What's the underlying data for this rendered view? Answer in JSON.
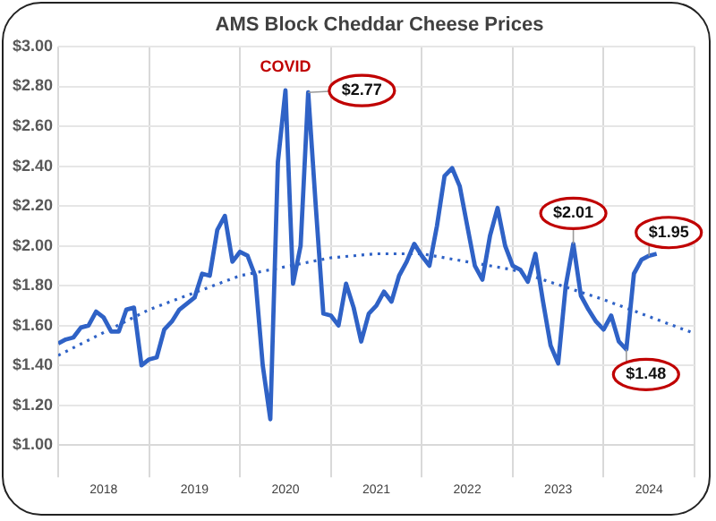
{
  "chart_data": {
    "type": "line",
    "title": "AMS Block Cheddar Cheese Prices",
    "xlim": [
      "2018-01",
      "2025-01"
    ],
    "xticks": [
      {
        "value": "2018-01",
        "label": null
      },
      {
        "value": "2018-07",
        "label": "2018"
      },
      {
        "value": "2019-01",
        "label": null
      },
      {
        "value": "2019-07",
        "label": "2019"
      },
      {
        "value": "2020-01",
        "label": null
      },
      {
        "value": "2020-07",
        "label": "2020"
      },
      {
        "value": "2021-01",
        "label": null
      },
      {
        "value": "2021-07",
        "label": "2021"
      },
      {
        "value": "2022-01",
        "label": null
      },
      {
        "value": "2022-07",
        "label": "2022"
      },
      {
        "value": "2023-01",
        "label": null
      },
      {
        "value": "2023-07",
        "label": "2023"
      },
      {
        "value": "2024-01",
        "label": null
      },
      {
        "value": "2024-07",
        "label": "2024"
      },
      {
        "value": "2025-01",
        "label": null
      }
    ],
    "ylim": [
      1,
      3
    ],
    "yticks": [
      {
        "value": 1,
        "label": "$1.00"
      },
      {
        "value": 1.2,
        "label": "$1.20"
      },
      {
        "value": 1.4,
        "label": "$1.40"
      },
      {
        "value": 1.6,
        "label": "$1.60"
      },
      {
        "value": 1.8,
        "label": "$1.80"
      },
      {
        "value": 2,
        "label": "$2.00"
      },
      {
        "value": 2.2,
        "label": "$2.20"
      },
      {
        "value": 2.4,
        "label": "$2.40"
      },
      {
        "value": 2.6,
        "label": "$2.60"
      },
      {
        "value": 2.8,
        "label": "$2.80"
      },
      {
        "value": 3,
        "label": "$3.00"
      }
    ],
    "grid": true,
    "legend": false,
    "marker": "none",
    "series": [
      {
        "type": "line",
        "color": "#2f62c6",
        "line_style": "solid",
        "x": [
          "2018-01",
          "2018-02",
          "2018-03",
          "2018-04",
          "2018-05",
          "2018-06",
          "2018-07",
          "2018-08",
          "2018-09",
          "2018-10",
          "2018-11",
          "2018-12",
          "2019-01",
          "2019-02",
          "2019-03",
          "2019-04",
          "2019-05",
          "2019-06",
          "2019-07",
          "2019-08",
          "2019-09",
          "2019-10",
          "2019-11",
          "2019-12",
          "2020-01",
          "2020-02",
          "2020-03",
          "2020-04",
          "2020-05",
          "2020-06",
          "2020-07",
          "2020-08",
          "2020-09",
          "2020-10",
          "2020-11",
          "2020-12",
          "2021-01",
          "2021-02",
          "2021-03",
          "2021-04",
          "2021-05",
          "2021-06",
          "2021-07",
          "2021-08",
          "2021-09",
          "2021-10",
          "2021-11",
          "2021-12",
          "2022-01",
          "2022-02",
          "2022-03",
          "2022-04",
          "2022-05",
          "2022-06",
          "2022-07",
          "2022-08",
          "2022-09",
          "2022-10",
          "2022-11",
          "2022-12",
          "2023-01",
          "2023-02",
          "2023-03",
          "2023-04",
          "2023-05",
          "2023-06",
          "2023-07",
          "2023-08",
          "2023-09",
          "2023-10",
          "2023-11",
          "2023-12",
          "2024-01",
          "2024-02",
          "2024-03",
          "2024-04",
          "2024-05",
          "2024-06",
          "2024-07",
          "2024-08"
        ],
        "values": [
          1.51,
          1.53,
          1.54,
          1.59,
          1.6,
          1.67,
          1.64,
          1.57,
          1.57,
          1.68,
          1.69,
          1.4,
          1.43,
          1.44,
          1.58,
          1.62,
          1.68,
          1.71,
          1.74,
          1.86,
          1.85,
          2.08,
          2.15,
          1.92,
          1.97,
          1.95,
          1.85,
          1.4,
          1.13,
          2.42,
          2.78,
          1.81,
          2.0,
          2.77,
          2.2,
          1.66,
          1.65,
          1.6,
          1.81,
          1.69,
          1.52,
          1.66,
          1.7,
          1.77,
          1.72,
          1.85,
          1.92,
          2.01,
          1.95,
          1.9,
          2.1,
          2.35,
          2.39,
          2.3,
          2.1,
          1.9,
          1.83,
          2.05,
          2.19,
          2.0,
          1.9,
          1.88,
          1.82,
          1.96,
          1.72,
          1.5,
          1.41,
          1.8,
          2.01,
          1.75,
          1.68,
          1.62,
          1.58,
          1.65,
          1.52,
          1.48,
          1.86,
          1.93,
          1.95,
          1.96
        ]
      },
      {
        "type": "line",
        "color": "#2f62c6",
        "line_style": "dotted",
        "x": [
          "2018-01",
          "2019-01",
          "2020-01",
          "2021-01",
          "2021-07",
          "2022-01",
          "2023-01",
          "2024-01",
          "2025-01"
        ],
        "values": [
          1.45,
          1.68,
          1.85,
          1.94,
          1.96,
          1.96,
          1.88,
          1.73,
          1.56
        ]
      }
    ],
    "annotations": [
      {
        "text": "COVID",
        "x": "2020-07",
        "y": 2.78
      },
      {
        "text": "$2.77",
        "x": "2020-10",
        "y": 2.77
      },
      {
        "text": "$2.01",
        "x": "2023-09",
        "y": 2.01
      },
      {
        "text": "$1.48",
        "x": "2024-04",
        "y": 1.48
      },
      {
        "text": "$1.95",
        "x": "2024-07",
        "y": 1.95
      }
    ]
  }
}
